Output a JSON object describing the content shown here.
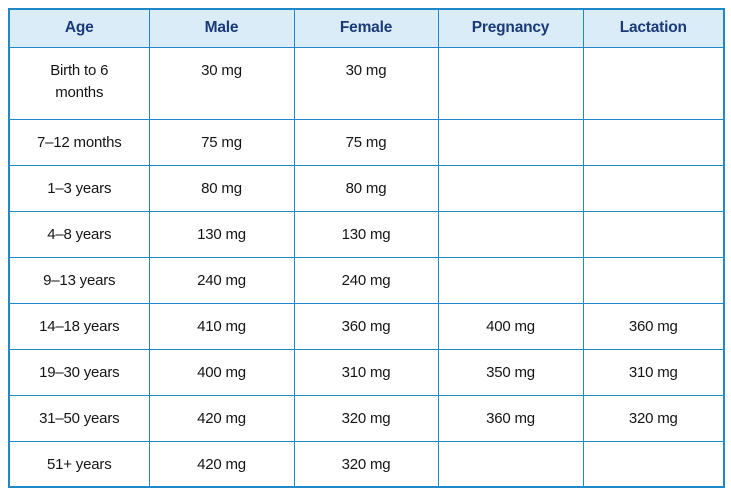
{
  "colors": {
    "border": "#1f88c9",
    "header_bg": "#daecf7",
    "header_text": "#1a3a78",
    "body_text": "#151515",
    "page_bg": "#ffffff"
  },
  "table": {
    "columns": [
      {
        "id": "age",
        "label": "Age"
      },
      {
        "id": "male",
        "label": "Male"
      },
      {
        "id": "female",
        "label": "Female"
      },
      {
        "id": "pregnancy",
        "label": "Pregnancy"
      },
      {
        "id": "lactation",
        "label": "Lactation"
      }
    ],
    "rows": [
      {
        "age": "Birth to 6\nmonths",
        "male": "30 mg",
        "female": "30 mg",
        "pregnancy": "",
        "lactation": ""
      },
      {
        "age": "7–12 months",
        "male": "75 mg",
        "female": "75 mg",
        "pregnancy": "",
        "lactation": ""
      },
      {
        "age": "1–3 years",
        "male": "80 mg",
        "female": "80 mg",
        "pregnancy": "",
        "lactation": ""
      },
      {
        "age": "4–8 years",
        "male": "130 mg",
        "female": "130 mg",
        "pregnancy": "",
        "lactation": ""
      },
      {
        "age": "9–13 years",
        "male": "240 mg",
        "female": "240 mg",
        "pregnancy": "",
        "lactation": ""
      },
      {
        "age": "14–18 years",
        "male": "410 mg",
        "female": "360 mg",
        "pregnancy": "400 mg",
        "lactation": "360 mg"
      },
      {
        "age": "19–30 years",
        "male": "400 mg",
        "female": "310 mg",
        "pregnancy": "350 mg",
        "lactation": "310 mg"
      },
      {
        "age": "31–50 years",
        "male": "420 mg",
        "female": "320 mg",
        "pregnancy": "360 mg",
        "lactation": "320 mg"
      },
      {
        "age": "51+ years",
        "male": "420 mg",
        "female": "320 mg",
        "pregnancy": "",
        "lactation": ""
      }
    ]
  }
}
